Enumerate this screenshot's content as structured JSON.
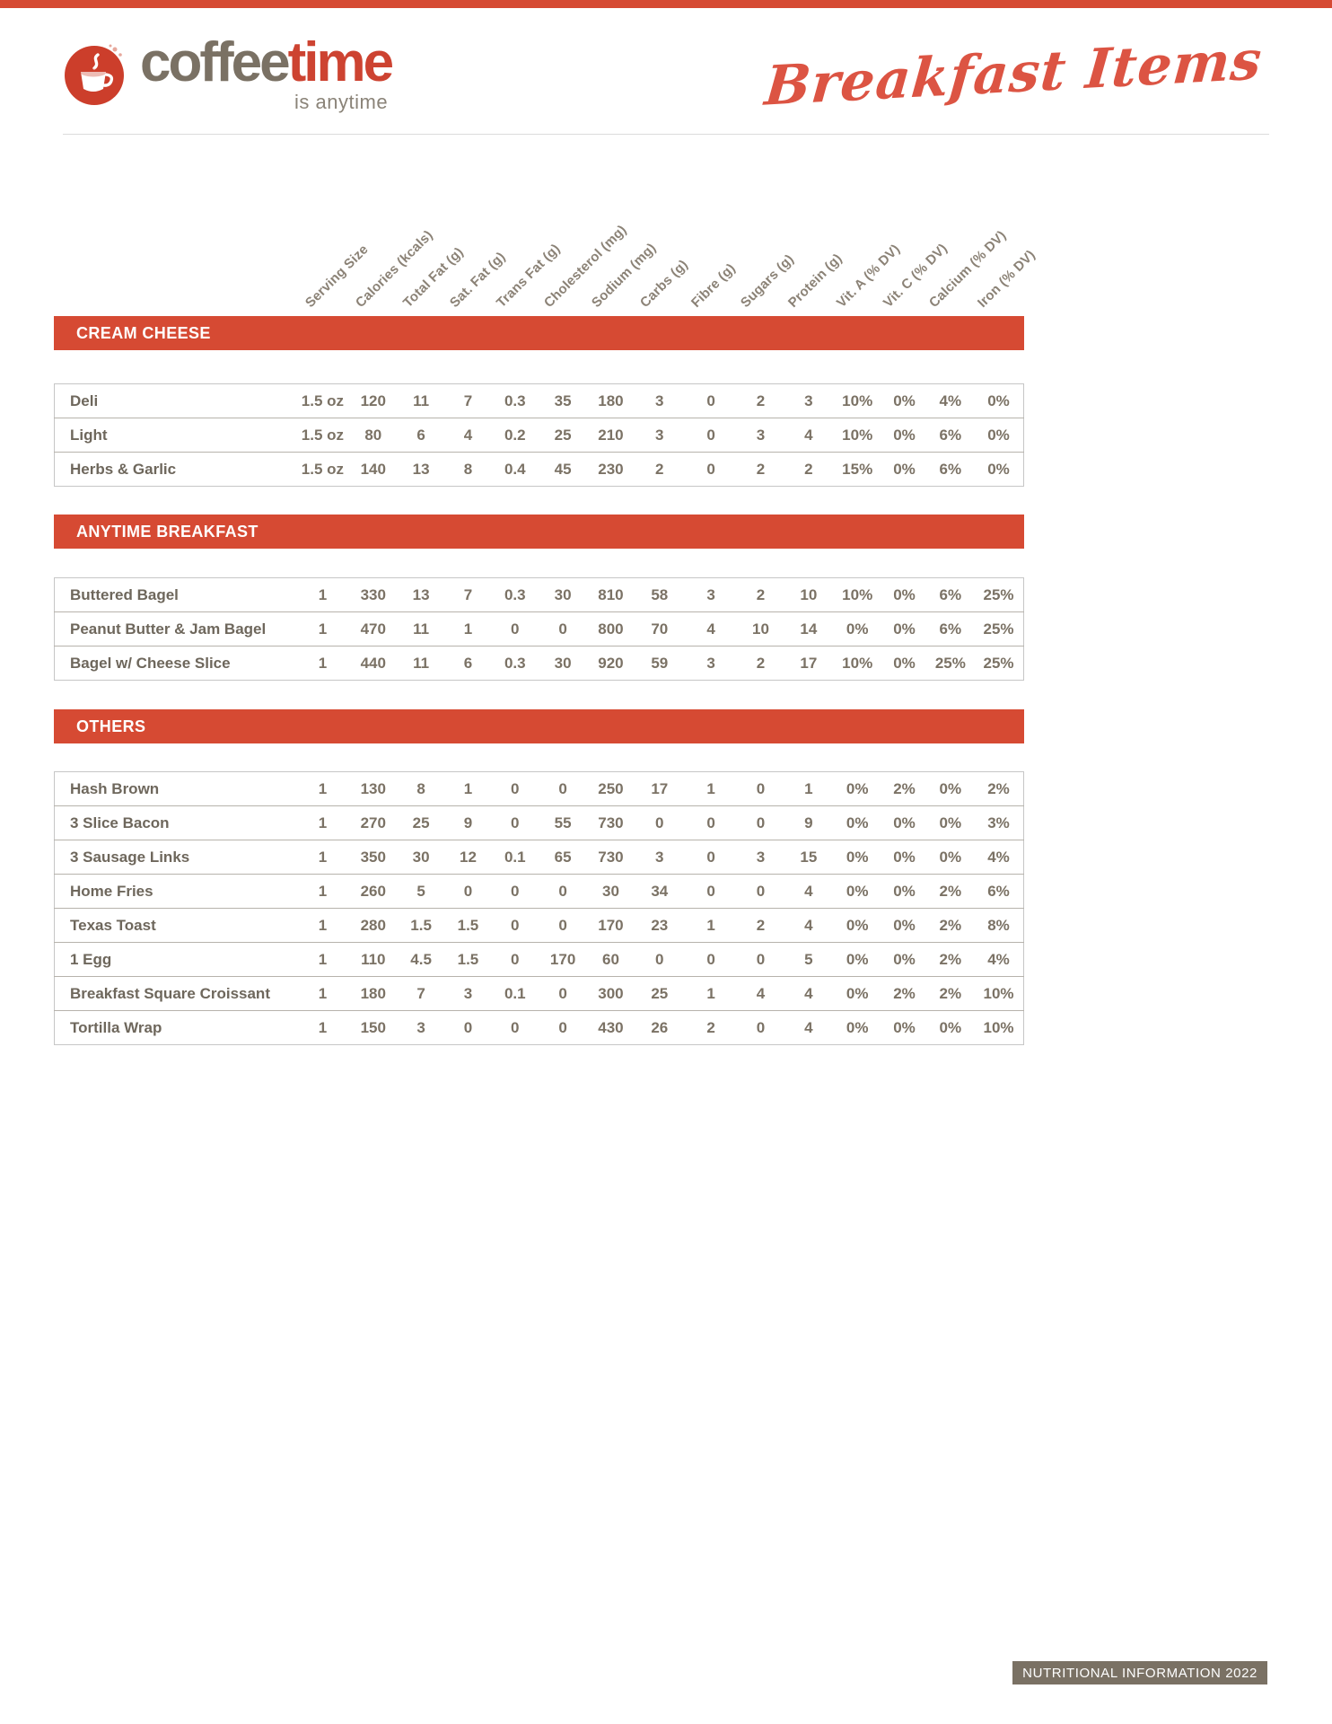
{
  "brand": {
    "word1": "coffee",
    "word2": "time",
    "tagline": "is anytime",
    "icon": "coffee-cup-icon"
  },
  "page_title": "Breakfast Items",
  "columns": [
    "Serving Size",
    "Calories (kcals)",
    "Total Fat (g)",
    "Sat. Fat (g)",
    "Trans Fat (g)",
    "Cholesterol (mg)",
    "Sodium (mg)",
    "Carbs (g)",
    "Fibre (g)",
    "Sugars (g)",
    "Protein (g)",
    "Vit. A (% DV)",
    "Vit. C (% DV)",
    "Calcium (% DV)",
    "Iron (% DV)"
  ],
  "sections": [
    {
      "title": "CREAM CHEESE",
      "rows": [
        {
          "name": "Deli",
          "values": [
            "1.5 oz",
            "120",
            "11",
            "7",
            "0.3",
            "35",
            "180",
            "3",
            "0",
            "2",
            "3",
            "10%",
            "0%",
            "4%",
            "0%"
          ]
        },
        {
          "name": "Light",
          "values": [
            "1.5 oz",
            "80",
            "6",
            "4",
            "0.2",
            "25",
            "210",
            "3",
            "0",
            "3",
            "4",
            "10%",
            "0%",
            "6%",
            "0%"
          ]
        },
        {
          "name": "Herbs & Garlic",
          "values": [
            "1.5 oz",
            "140",
            "13",
            "8",
            "0.4",
            "45",
            "230",
            "2",
            "0",
            "2",
            "2",
            "15%",
            "0%",
            "6%",
            "0%"
          ]
        }
      ]
    },
    {
      "title": "ANYTIME BREAKFAST",
      "rows": [
        {
          "name": "Buttered Bagel",
          "values": [
            "1",
            "330",
            "13",
            "7",
            "0.3",
            "30",
            "810",
            "58",
            "3",
            "2",
            "10",
            "10%",
            "0%",
            "6%",
            "25%"
          ]
        },
        {
          "name": "Peanut Butter & Jam Bagel",
          "values": [
            "1",
            "470",
            "11",
            "1",
            "0",
            "0",
            "800",
            "70",
            "4",
            "10",
            "14",
            "0%",
            "0%",
            "6%",
            "25%"
          ]
        },
        {
          "name": "Bagel w/ Cheese Slice",
          "values": [
            "1",
            "440",
            "11",
            "6",
            "0.3",
            "30",
            "920",
            "59",
            "3",
            "2",
            "17",
            "10%",
            "0%",
            "25%",
            "25%"
          ]
        }
      ]
    },
    {
      "title": "OTHERS",
      "rows": [
        {
          "name": "Hash Brown",
          "values": [
            "1",
            "130",
            "8",
            "1",
            "0",
            "0",
            "250",
            "17",
            "1",
            "0",
            "1",
            "0%",
            "2%",
            "0%",
            "2%"
          ]
        },
        {
          "name": "3 Slice Bacon",
          "values": [
            "1",
            "270",
            "25",
            "9",
            "0",
            "55",
            "730",
            "0",
            "0",
            "0",
            "9",
            "0%",
            "0%",
            "0%",
            "3%"
          ]
        },
        {
          "name": "3 Sausage Links",
          "values": [
            "1",
            "350",
            "30",
            "12",
            "0.1",
            "65",
            "730",
            "3",
            "0",
            "3",
            "15",
            "0%",
            "0%",
            "0%",
            "4%"
          ]
        },
        {
          "name": "Home Fries",
          "values": [
            "1",
            "260",
            "5",
            "0",
            "0",
            "0",
            "30",
            "34",
            "0",
            "0",
            "4",
            "0%",
            "0%",
            "2%",
            "6%"
          ]
        },
        {
          "name": "Texas Toast",
          "values": [
            "1",
            "280",
            "1.5",
            "1.5",
            "0",
            "0",
            "170",
            "23",
            "1",
            "2",
            "4",
            "0%",
            "0%",
            "2%",
            "8%"
          ]
        },
        {
          "name": "1 Egg",
          "values": [
            "1",
            "110",
            "4.5",
            "1.5",
            "0",
            "170",
            "60",
            "0",
            "0",
            "0",
            "5",
            "0%",
            "0%",
            "2%",
            "4%"
          ]
        },
        {
          "name": "Breakfast Square Croissant",
          "values": [
            "1",
            "180",
            "7",
            "3",
            "0.1",
            "0",
            "300",
            "25",
            "1",
            "4",
            "4",
            "0%",
            "2%",
            "2%",
            "10%"
          ]
        },
        {
          "name": "Tortilla Wrap",
          "values": [
            "1",
            "150",
            "3",
            "0",
            "0",
            "0",
            "430",
            "26",
            "2",
            "0",
            "4",
            "0%",
            "0%",
            "0%",
            "10%"
          ]
        }
      ]
    }
  ],
  "footer": {
    "badge": "NUTRITIONAL INFORMATION 2022"
  },
  "colors": {
    "accent_red": "#d64a33",
    "title_red": "#dc5443",
    "brand_gray": "#7a7164",
    "text_gray": "#7b7265",
    "footer_bg": "#7a7164"
  }
}
